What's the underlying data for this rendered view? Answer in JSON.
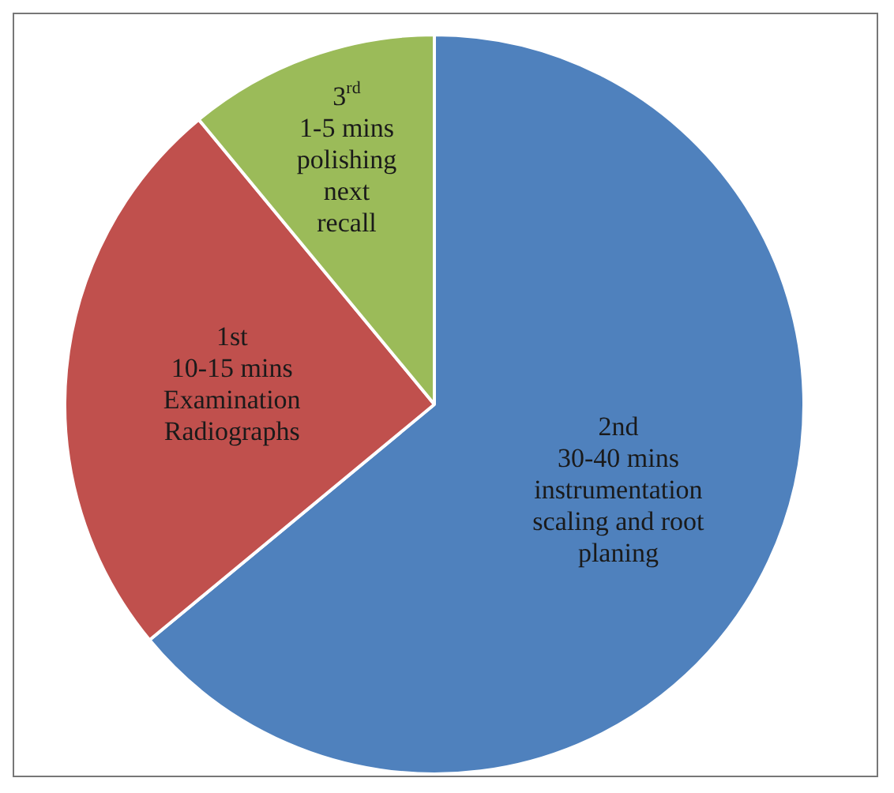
{
  "chart_data": {
    "type": "pie",
    "categories": [
      "2nd\n30-40 mins\ninstrumentation\nscaling and root\nplaning",
      "1st\n10-15 mins\nExamination\nRadiographs",
      "3$^{rd}$\n1-5 mins\npolishing\nnext\nrecall"
    ],
    "values": [
      64,
      25,
      11
    ],
    "colors": [
      "#4f81bd",
      "#c0504d",
      "#9bbb59"
    ],
    "legend": false
  }
}
